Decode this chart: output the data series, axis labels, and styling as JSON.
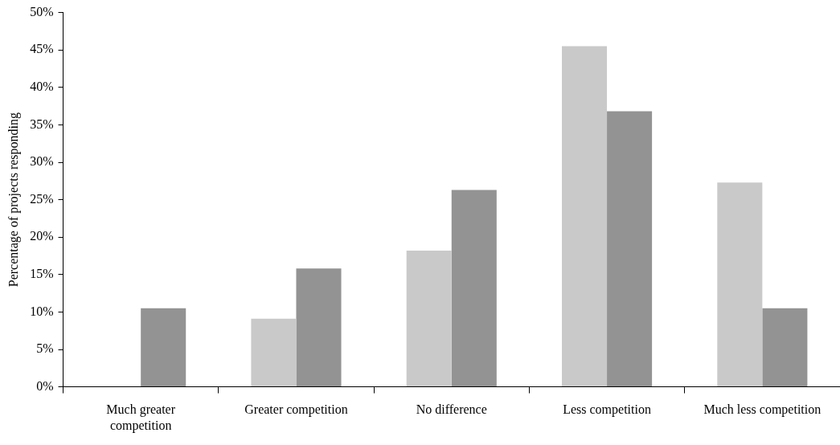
{
  "chart_data": {
    "type": "bar",
    "ylabel": "Percentage of projects responding",
    "categories": [
      "Much greater competition",
      "Greater competition",
      "No difference",
      "Less competition",
      "Much less competition"
    ],
    "series": [
      {
        "color": "#c9c9c9",
        "values": [
          0,
          9.1,
          18.2,
          45.5,
          27.3
        ]
      },
      {
        "color": "#939393",
        "values": [
          10.5,
          15.8,
          26.3,
          36.8,
          10.5
        ]
      }
    ],
    "ylim": [
      0,
      50
    ],
    "yticks": [
      {
        "value": 0,
        "label": "0%"
      },
      {
        "value": 5,
        "label": "5%"
      },
      {
        "value": 10,
        "label": "10%"
      },
      {
        "value": 15,
        "label": "15%"
      },
      {
        "value": 20,
        "label": "20%"
      },
      {
        "value": 25,
        "label": "25%"
      },
      {
        "value": 30,
        "label": "30%"
      },
      {
        "value": 35,
        "label": "35%"
      },
      {
        "value": 40,
        "label": "40%"
      },
      {
        "value": 45,
        "label": "45%"
      },
      {
        "value": 50,
        "label": "50%"
      }
    ],
    "grid": false,
    "legend": false
  }
}
